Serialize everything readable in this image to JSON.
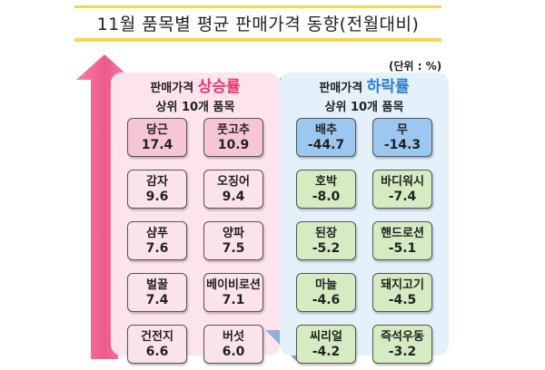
{
  "title": "11월 품목별 평균 판매가격 동향(전월대비)",
  "unit": "(단위 : %)",
  "rise_panel": {
    "heading_prefix": "판매가격",
    "heading_highlight": "상승률",
    "subheading": "상위 10개 품목"
  },
  "fall_panel": {
    "heading_prefix": "판매가격",
    "heading_highlight": "하락률",
    "subheading": "상위 10개 품목"
  },
  "colors": {
    "rise_accent": "#e33a6f",
    "fall_accent": "#2f7fd1",
    "title_rule": "#f2d64b"
  },
  "chart_data": [
    {
      "type": "table",
      "title": "판매가격 상승률 상위 10개 품목",
      "unit": "%",
      "categories": [
        "당근",
        "풋고추",
        "감자",
        "오징어",
        "샴푸",
        "양파",
        "벌꿀",
        "베이비로션",
        "건전지",
        "버섯"
      ],
      "values": [
        17.4,
        10.9,
        9.6,
        9.4,
        7.6,
        7.5,
        7.4,
        7.1,
        6.6,
        6.0
      ],
      "display": [
        "17.4",
        "10.9",
        "9.6",
        "9.4",
        "7.6",
        "7.5",
        "7.4",
        "7.1",
        "6.6",
        "6.0"
      ]
    },
    {
      "type": "table",
      "title": "판매가격 하락률 상위 10개 품목",
      "unit": "%",
      "categories": [
        "배추",
        "무",
        "호박",
        "바디워시",
        "된장",
        "핸드로션",
        "마늘",
        "돼지고기",
        "씨리얼",
        "즉석우동"
      ],
      "values": [
        -44.7,
        -14.3,
        -8.0,
        -7.4,
        -5.2,
        -5.1,
        -4.6,
        -4.5,
        -4.2,
        -3.2
      ],
      "display": [
        "-44.7",
        "-14.3",
        "-8.0",
        "-7.4",
        "-5.2",
        "-5.1",
        "-4.6",
        "-4.5",
        "-4.2",
        "-3.2"
      ]
    }
  ]
}
